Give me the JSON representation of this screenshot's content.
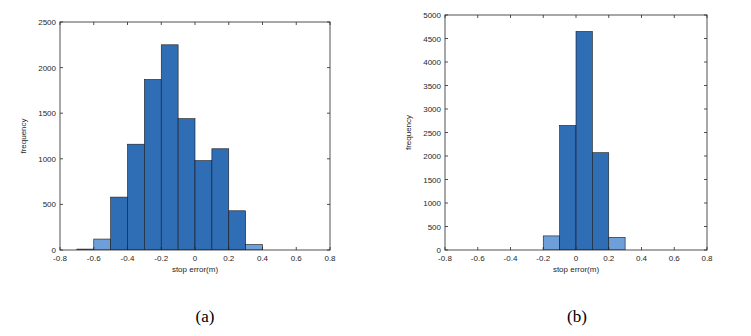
{
  "chart_data": [
    {
      "type": "histogram",
      "caption": "(a)",
      "x_label": "stop error(m)",
      "y_label": "frequency",
      "bins": [
        -0.7,
        -0.6,
        -0.5,
        -0.4,
        -0.3,
        -0.2,
        -0.1,
        0,
        0.1,
        0.2,
        0.3,
        0.4
      ],
      "values": [
        10,
        120,
        580,
        1160,
        1870,
        2250,
        1440,
        980,
        1110,
        430,
        60
      ],
      "colors": [
        "#6f9fd8",
        "#6f9fd8",
        "#2f6db5",
        "#2f6db5",
        "#2f6db5",
        "#2f6db5",
        "#2f6db5",
        "#2f6db5",
        "#2f6db5",
        "#2f6db5",
        "#6f9fd8"
      ],
      "xlim": [
        -0.8,
        0.8
      ],
      "xticks": [
        -0.8,
        -0.6,
        -0.4,
        -0.2,
        0,
        0.2,
        0.4,
        0.6,
        0.8
      ],
      "ylim": [
        0,
        2500
      ],
      "yticks": [
        0,
        500,
        1000,
        1500,
        2000,
        2500
      ]
    },
    {
      "type": "histogram",
      "caption": "(b)",
      "x_label": "stop error(m)",
      "y_label": "frequency",
      "bins": [
        -0.2,
        -0.1,
        0,
        0.1,
        0.2,
        0.3
      ],
      "values": [
        300,
        2650,
        4650,
        2070,
        270
      ],
      "colors": [
        "#6f9fd8",
        "#2f6db5",
        "#2f6db5",
        "#2f6db5",
        "#6f9fd8"
      ],
      "xlim": [
        -0.8,
        0.8
      ],
      "xticks": [
        -0.8,
        -0.6,
        -0.4,
        -0.2,
        0,
        0.2,
        0.4,
        0.6,
        0.8
      ],
      "ylim": [
        0,
        5000
      ],
      "yticks": [
        0,
        500,
        1000,
        1500,
        2000,
        2500,
        3000,
        3500,
        4000,
        4500,
        5000
      ]
    }
  ]
}
